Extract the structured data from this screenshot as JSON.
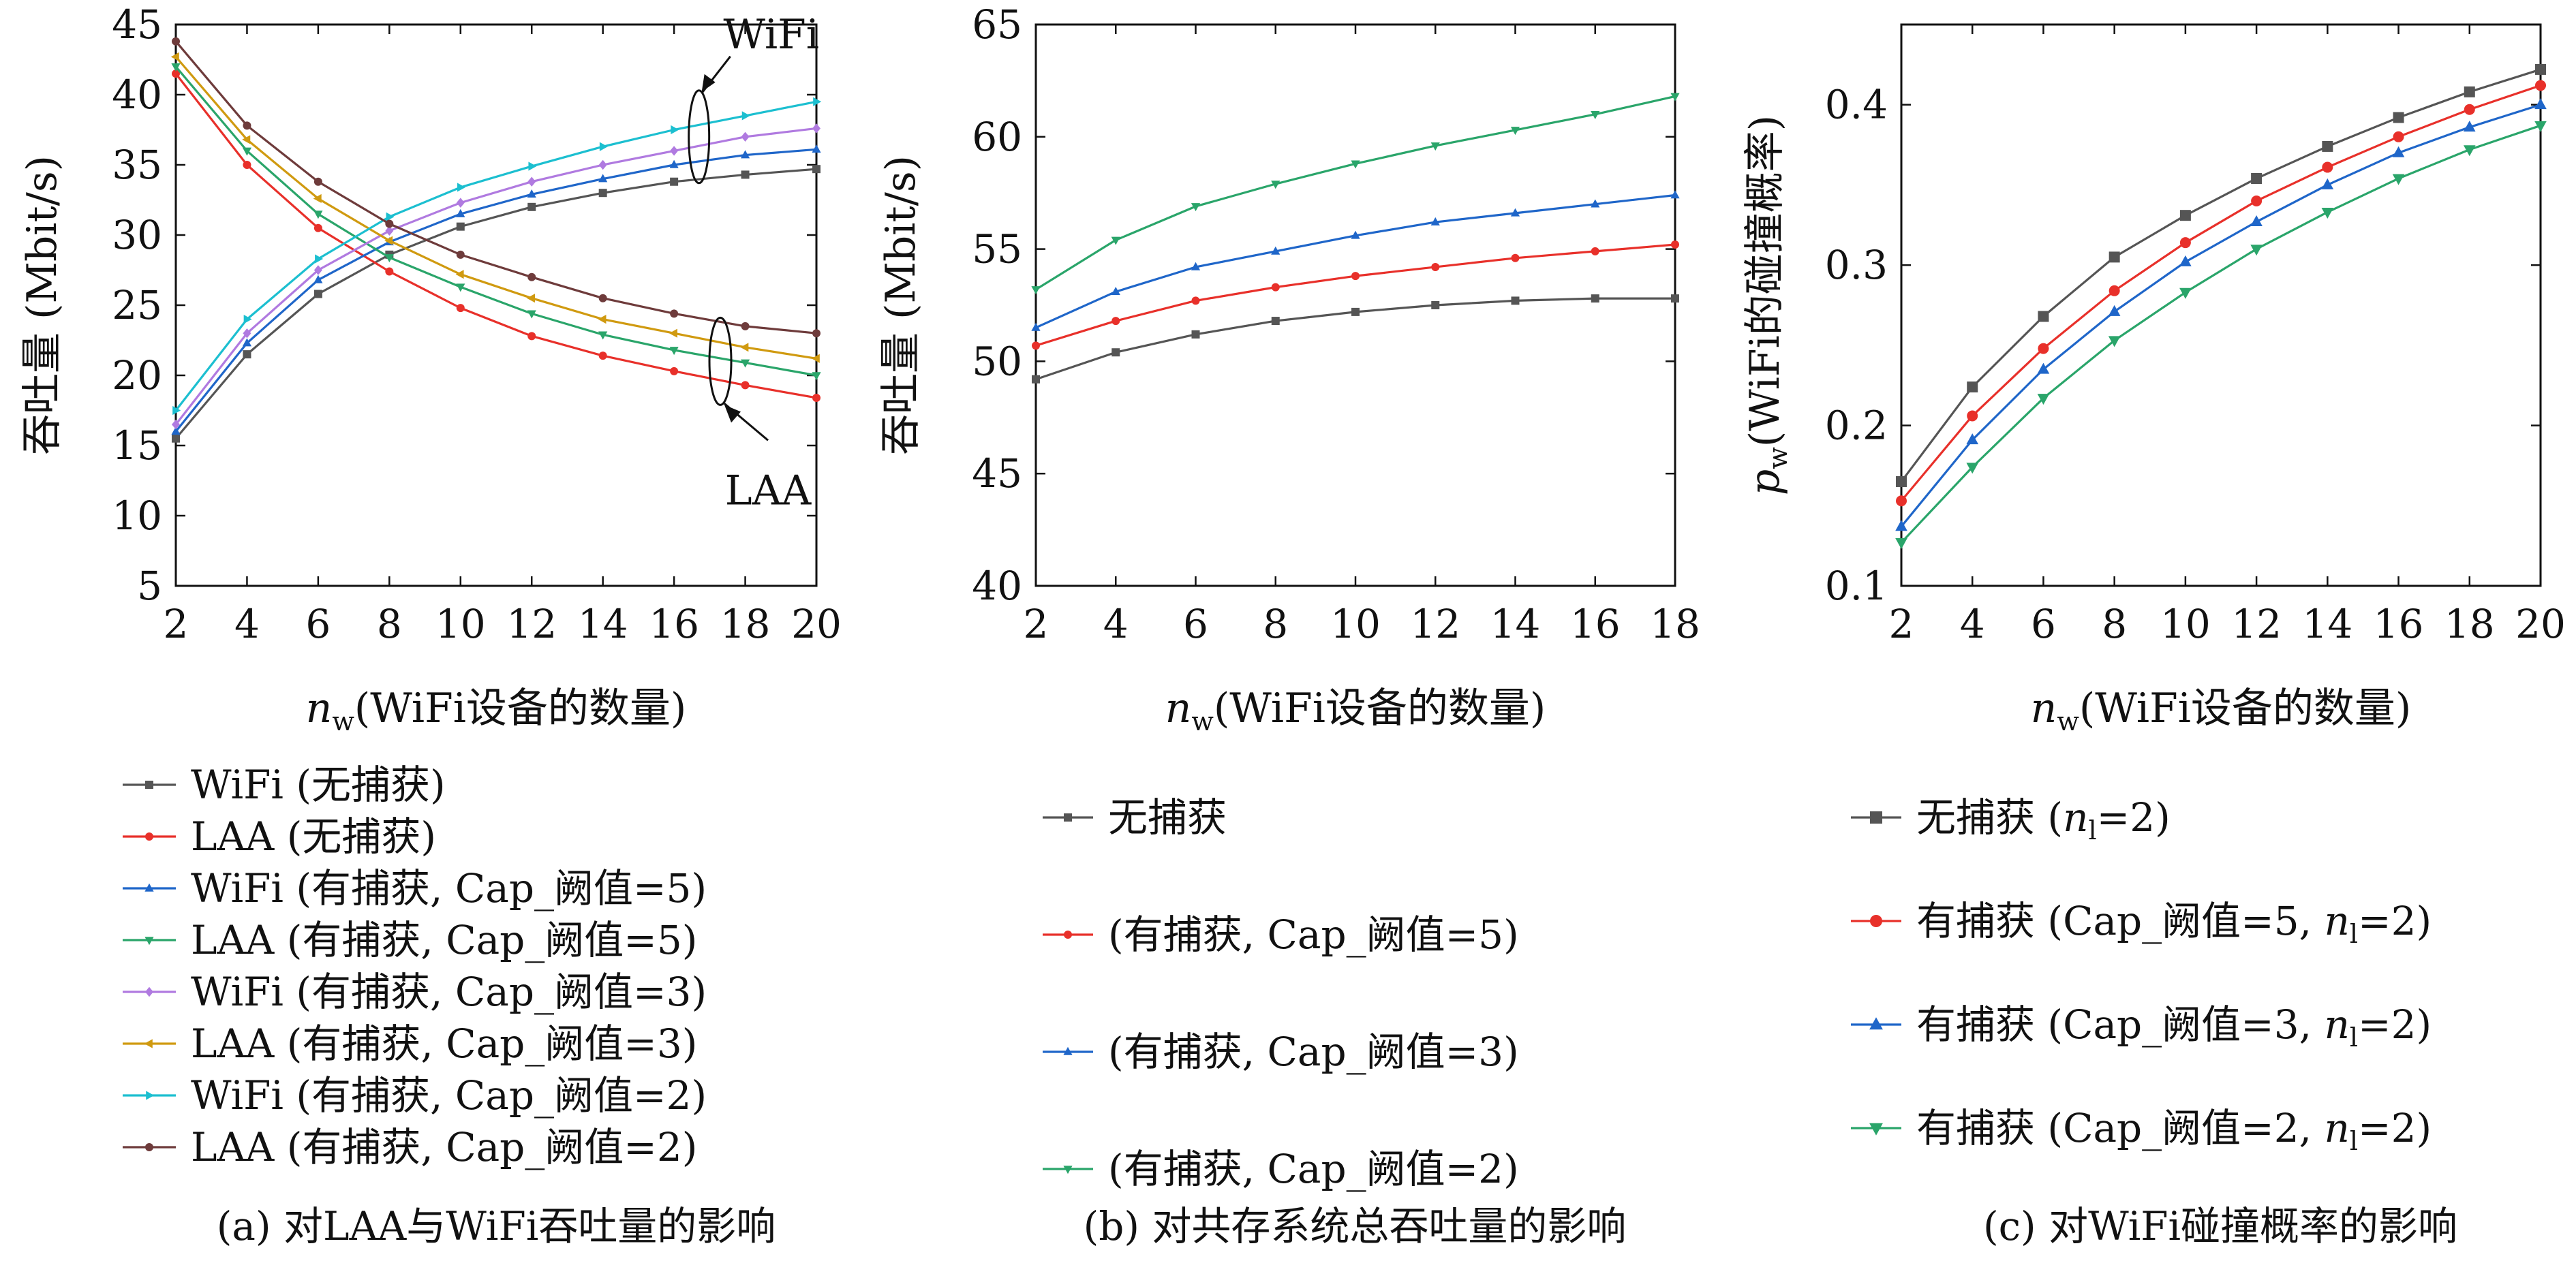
{
  "chart_data": [
    {
      "type": "line",
      "caption": "(a) 对LAA与WiFi吞吐量的影响",
      "xlabel_var": "n",
      "xlabel_sub": "w",
      "xlabel": "(WiFi设备的数量)",
      "ylabel": "吞吐量 (Mbit/s)",
      "xlim": [
        2,
        20
      ],
      "ylim": [
        5,
        45
      ],
      "xticks": [
        2,
        4,
        6,
        8,
        10,
        12,
        14,
        16,
        18,
        20
      ],
      "yticks": [
        5,
        10,
        15,
        20,
        25,
        30,
        35,
        40,
        45
      ],
      "x": [
        2,
        4,
        6,
        8,
        10,
        12,
        14,
        16,
        18,
        20
      ],
      "legend_placement": "below",
      "annotations": [
        {
          "text": "WiFi",
          "target_x": 16.7,
          "target_y": 37
        },
        {
          "text": "LAA",
          "target_x": 17.3,
          "target_y": 21
        }
      ],
      "series": [
        {
          "name": "WiFi (无捕获)",
          "color": "#555555",
          "marker": "square",
          "values": [
            15.5,
            21.5,
            25.8,
            28.6,
            30.6,
            32.0,
            33.0,
            33.8,
            34.3,
            34.7
          ]
        },
        {
          "name": "LAA (无捕获)",
          "color": "#e8302a",
          "marker": "circle",
          "values": [
            41.5,
            35.0,
            30.5,
            27.4,
            24.8,
            22.8,
            21.4,
            20.3,
            19.3,
            18.4
          ]
        },
        {
          "name": "WiFi (有捕获, Cap_阙值=5)",
          "color": "#1f66c9",
          "marker": "triangle-up",
          "values": [
            16.0,
            22.3,
            26.8,
            29.5,
            31.5,
            32.9,
            34.0,
            35.0,
            35.7,
            36.1
          ]
        },
        {
          "name": "LAA (有捕获, Cap_阙值=5)",
          "color": "#2aa56a",
          "marker": "triangle-down",
          "values": [
            42.0,
            36.0,
            31.5,
            28.4,
            26.3,
            24.4,
            22.9,
            21.8,
            20.9,
            20.0
          ]
        },
        {
          "name": "WiFi (有捕获, Cap_阙值=3)",
          "color": "#b07ae0",
          "marker": "diamond",
          "values": [
            16.5,
            23.0,
            27.5,
            30.3,
            32.3,
            33.8,
            35.0,
            36.0,
            37.0,
            37.6
          ]
        },
        {
          "name": "LAA (有捕获, Cap_阙值=3)",
          "color": "#d09a10",
          "marker": "triangle-left",
          "values": [
            42.7,
            36.8,
            32.6,
            29.6,
            27.2,
            25.5,
            24.0,
            23.0,
            22.0,
            21.2
          ]
        },
        {
          "name": "WiFi (有捕获, Cap_阙值=2)",
          "color": "#1cbfd0",
          "marker": "triangle-right",
          "values": [
            17.5,
            24.0,
            28.3,
            31.3,
            33.4,
            34.9,
            36.3,
            37.5,
            38.5,
            39.5
          ]
        },
        {
          "name": "LAA (有捕获, Cap_阙值=2)",
          "color": "#6e3b3b",
          "marker": "circle",
          "values": [
            43.8,
            37.8,
            33.8,
            30.8,
            28.6,
            27.0,
            25.5,
            24.4,
            23.5,
            23.0
          ]
        }
      ]
    },
    {
      "type": "line",
      "caption": "(b) 对共存系统总吞吐量的影响",
      "xlabel_var": "n",
      "xlabel_sub": "w",
      "xlabel": "(WiFi设备的数量)",
      "ylabel": "吞吐量 (Mbit/s)",
      "xlim": [
        2,
        18
      ],
      "ylim": [
        40,
        65
      ],
      "xticks": [
        2,
        4,
        6,
        8,
        10,
        12,
        14,
        16,
        18
      ],
      "yticks": [
        40,
        45,
        50,
        55,
        60,
        65
      ],
      "x": [
        2,
        4,
        6,
        8,
        10,
        12,
        14,
        16,
        18
      ],
      "legend_placement": "below",
      "series": [
        {
          "name": "无捕获",
          "color": "#555555",
          "marker": "square",
          "values": [
            49.2,
            50.4,
            51.2,
            51.8,
            52.2,
            52.5,
            52.7,
            52.8,
            52.8
          ]
        },
        {
          "name": "(有捕获, Cap_阙值=5)",
          "color": "#e8302a",
          "marker": "circle",
          "values": [
            50.7,
            51.8,
            52.7,
            53.3,
            53.8,
            54.2,
            54.6,
            54.9,
            55.2
          ]
        },
        {
          "name": "(有捕获, Cap_阙值=3)",
          "color": "#1f66c9",
          "marker": "triangle-up",
          "values": [
            51.5,
            53.1,
            54.2,
            54.9,
            55.6,
            56.2,
            56.6,
            57.0,
            57.4
          ]
        },
        {
          "name": "(有捕获, Cap_阙值=2)",
          "color": "#2aa56a",
          "marker": "triangle-down",
          "values": [
            53.2,
            55.4,
            56.9,
            57.9,
            58.8,
            59.6,
            60.3,
            61.0,
            61.8
          ]
        }
      ]
    },
    {
      "type": "line",
      "caption": "(c) 对WiFi碰撞概率的影响",
      "xlabel_var": "n",
      "xlabel_sub": "w",
      "xlabel": "(WiFi设备的数量)",
      "ylabel_var": "p",
      "ylabel_sub": "w",
      "ylabel": "(WiFi的碰撞概率)",
      "xlim": [
        2,
        20
      ],
      "ylim": [
        0.1,
        0.45
      ],
      "xticks": [
        2,
        4,
        6,
        8,
        10,
        12,
        14,
        16,
        18,
        20
      ],
      "yticks": [
        0.1,
        0.2,
        0.3,
        0.4
      ],
      "x": [
        2,
        4,
        6,
        8,
        10,
        12,
        14,
        16,
        18,
        20
      ],
      "legend_placement": "below",
      "series": [
        {
          "name": "无捕获 (",
          "name_var": "n",
          "name_sub": "l",
          "name_tail": "=2)",
          "color": "#555555",
          "marker": "square",
          "values": [
            0.165,
            0.224,
            0.268,
            0.305,
            0.331,
            0.354,
            0.374,
            0.392,
            0.408,
            0.422
          ]
        },
        {
          "name": "有捕获 (Cap_阙值=5, ",
          "name_var": "n",
          "name_sub": "l",
          "name_tail": "=2)",
          "color": "#e8302a",
          "marker": "circle",
          "values": [
            0.153,
            0.206,
            0.248,
            0.284,
            0.314,
            0.34,
            0.361,
            0.38,
            0.397,
            0.412
          ]
        },
        {
          "name": "有捕获 (Cap_阙值=3, ",
          "name_var": "n",
          "name_sub": "l",
          "name_tail": "=2)",
          "color": "#1f66c9",
          "marker": "triangle-up",
          "values": [
            0.137,
            0.191,
            0.235,
            0.271,
            0.302,
            0.327,
            0.35,
            0.37,
            0.386,
            0.4
          ]
        },
        {
          "name": "有捕获 (Cap_阙值=2, ",
          "name_var": "n",
          "name_sub": "l",
          "name_tail": "=2)",
          "color": "#2aa56a",
          "marker": "triangle-down",
          "values": [
            0.127,
            0.174,
            0.217,
            0.253,
            0.283,
            0.31,
            0.333,
            0.354,
            0.372,
            0.387
          ]
        }
      ]
    }
  ]
}
